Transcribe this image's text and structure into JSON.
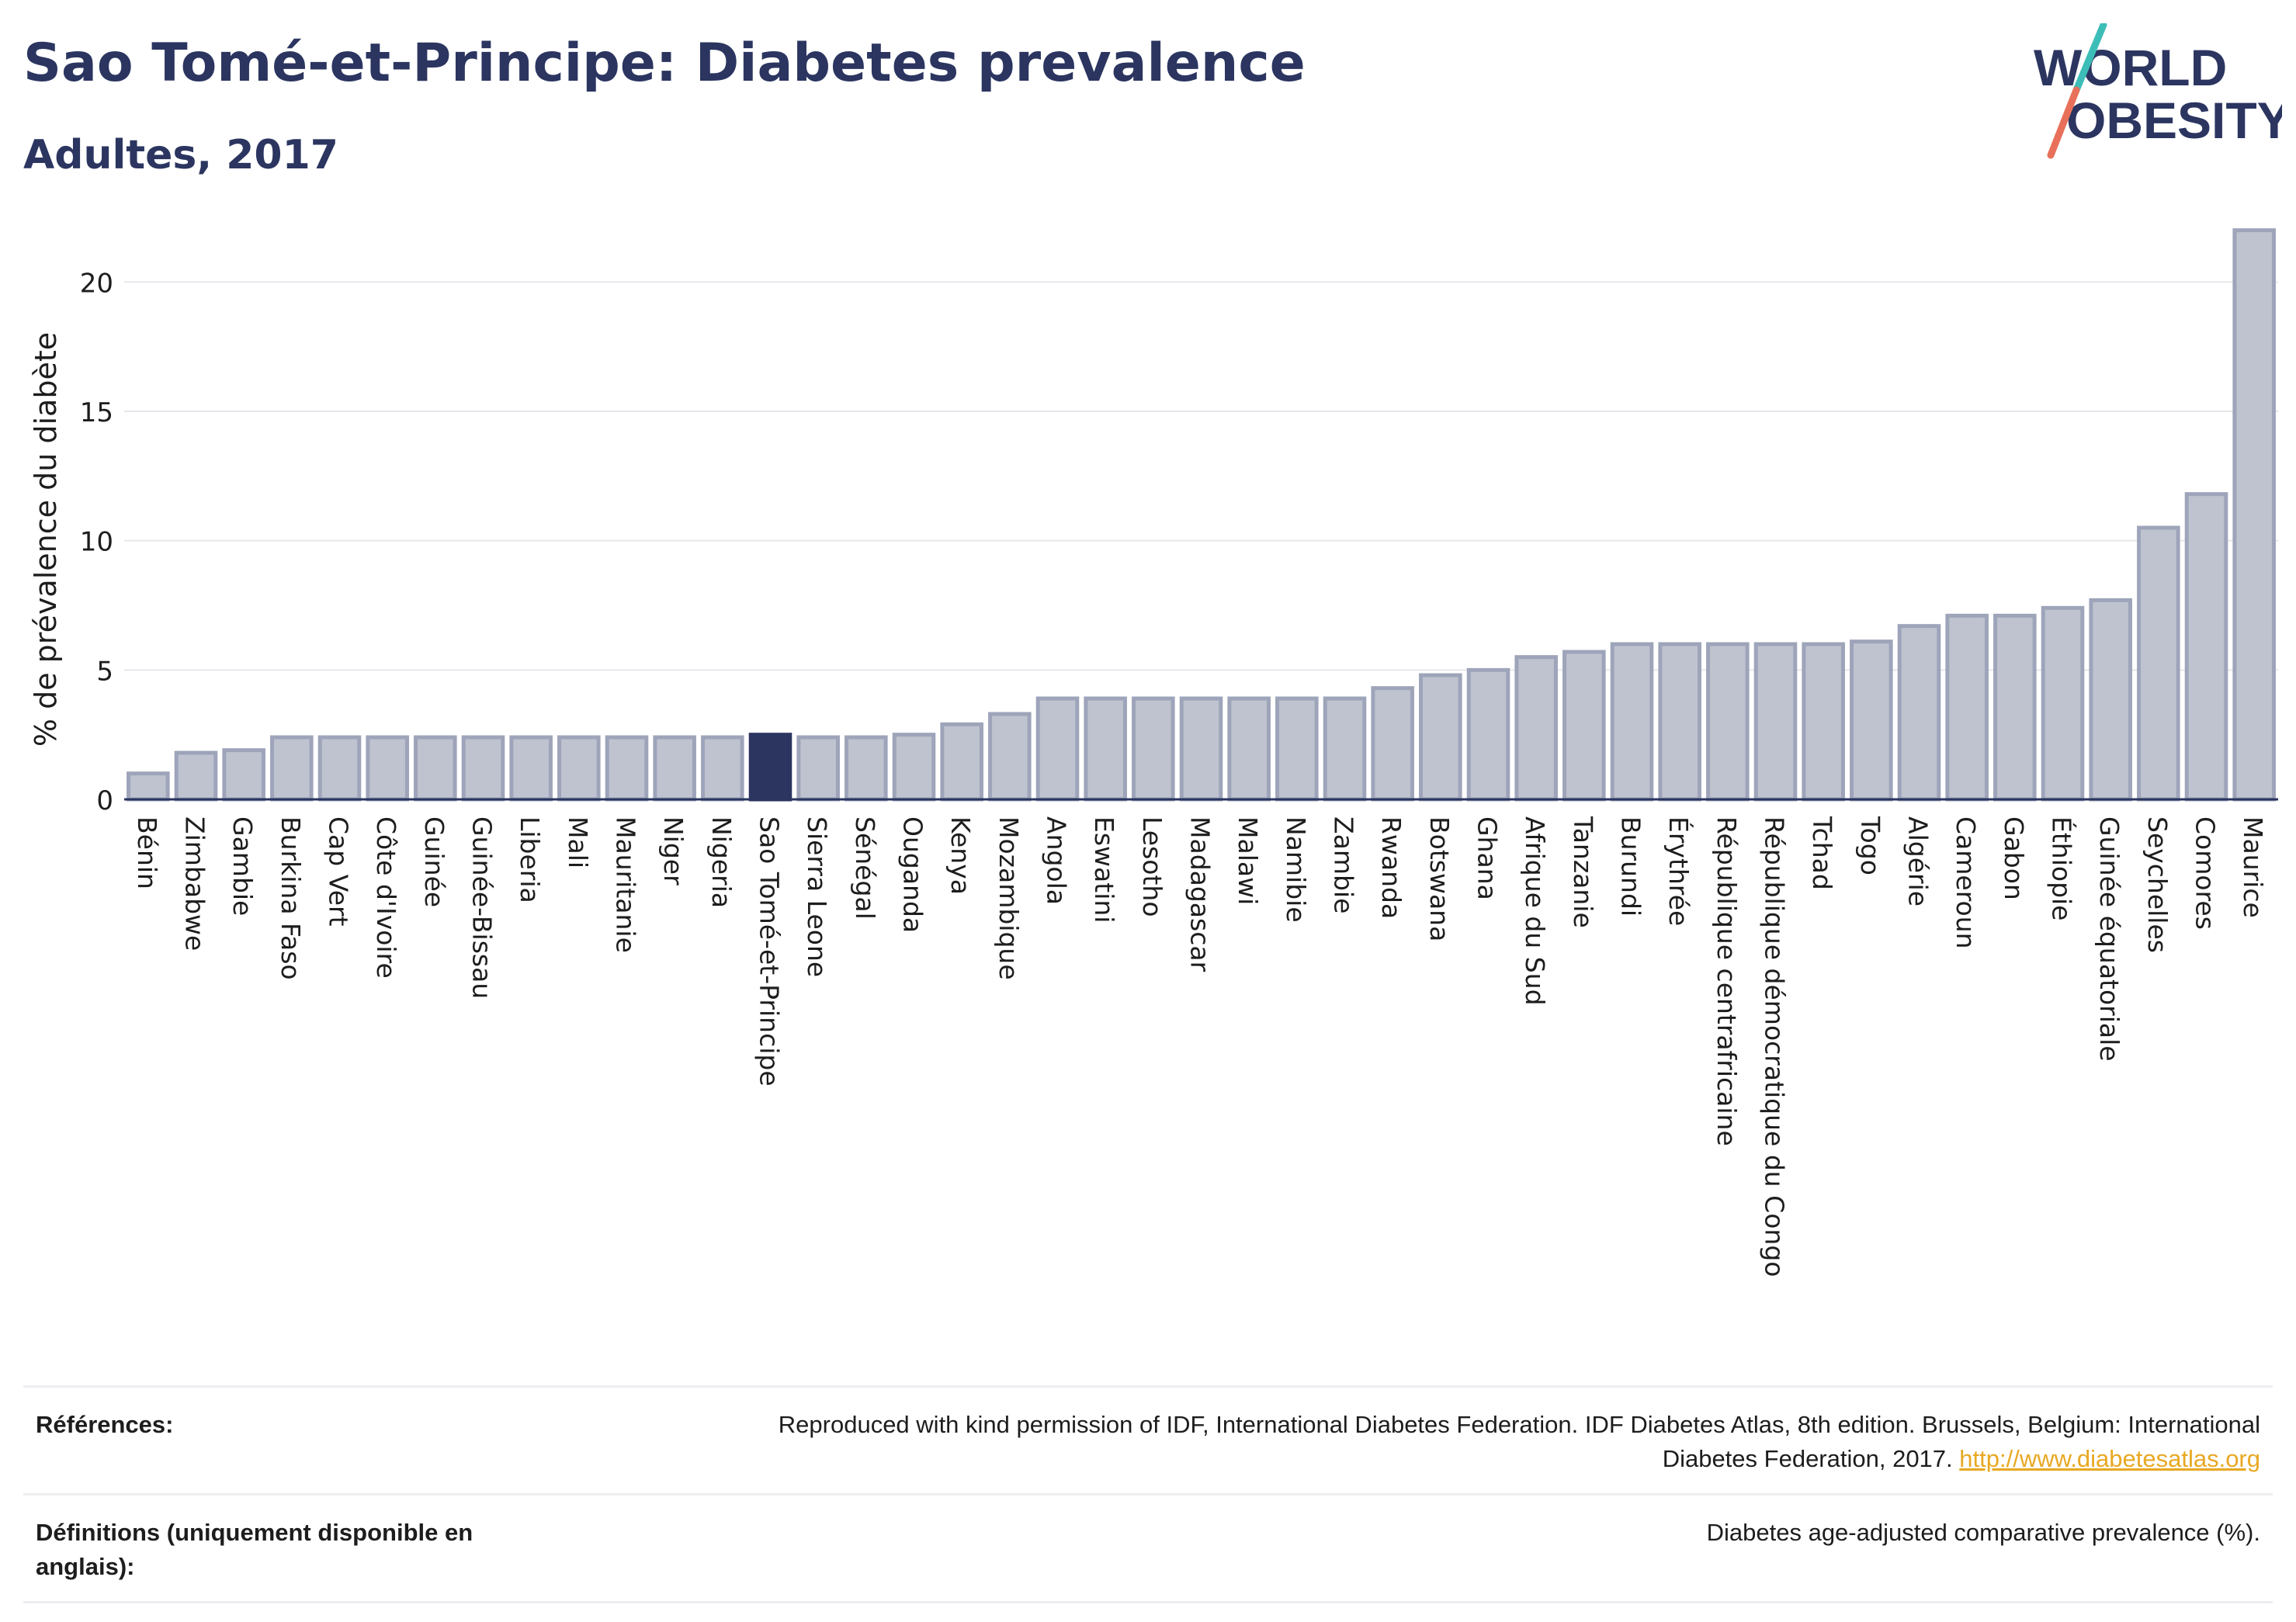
{
  "header": {
    "title": "Sao Tomé-et-Principe: Diabetes prevalence",
    "subtitle": "Adultes, 2017"
  },
  "logo": {
    "line1": "WORLD",
    "line2": "OBESITY",
    "accent_colors": [
      "#3dbdb8",
      "#e8705a"
    ],
    "text_color": "#2b3560"
  },
  "chart_data": {
    "type": "bar",
    "ylabel": "% de prévalence du diabète",
    "ylim": [
      0,
      22.5
    ],
    "yticks": [
      0,
      5,
      10,
      15,
      20
    ],
    "grid": true,
    "highlight": "Sao Tomé-et-Principe",
    "colors": {
      "bar": "#bfc3d0",
      "bar_border": "#9ea4b9",
      "highlight": "#2b3560"
    },
    "categories": [
      "Bénin",
      "Zimbabwe",
      "Gambie",
      "Burkina Faso",
      "Cap Vert",
      "Côte d'Ivoire",
      "Guinée",
      "Guinée-Bissau",
      "Liberia",
      "Mali",
      "Mauritanie",
      "Niger",
      "Nigeria",
      "Sao Tomé-et-Principe",
      "Sierra Leone",
      "Sénégal",
      "Ouganda",
      "Kenya",
      "Mozambique",
      "Angola",
      "Eswatini",
      "Lesotho",
      "Madagascar",
      "Malawi",
      "Namibie",
      "Zambie",
      "Rwanda",
      "Botswana",
      "Ghana",
      "Afrique du Sud",
      "Tanzanie",
      "Burundi",
      "Érythrée",
      "République centrafricaine",
      "République démocratique du Congo",
      "Tchad",
      "Togo",
      "Algérie",
      "Cameroun",
      "Gabon",
      "Éthiopie",
      "Guinée équatoriale",
      "Seychelles",
      "Comores",
      "Maurice"
    ],
    "values": [
      1.0,
      1.8,
      1.9,
      2.4,
      2.4,
      2.4,
      2.4,
      2.4,
      2.4,
      2.4,
      2.4,
      2.4,
      2.4,
      2.5,
      2.4,
      2.4,
      2.5,
      2.9,
      3.3,
      3.9,
      3.9,
      3.9,
      3.9,
      3.9,
      3.9,
      3.9,
      4.3,
      4.8,
      5.0,
      5.5,
      5.7,
      6.0,
      6.0,
      6.0,
      6.0,
      6.0,
      6.1,
      6.7,
      7.1,
      7.1,
      7.4,
      7.7,
      10.5,
      11.8,
      22.0
    ]
  },
  "references": {
    "label": "Références:",
    "text": "Reproduced with kind permission of IDF, International Diabetes Federation. IDF Diabetes Atlas, 8th edition. Brussels, Belgium: International Diabetes Federation, 2017.",
    "link": "http://www.diabetesatlas.org"
  },
  "definitions": {
    "label": "Définitions (uniquement disponible en anglais):",
    "text": "Diabetes age-adjusted comparative prevalence (%)."
  }
}
